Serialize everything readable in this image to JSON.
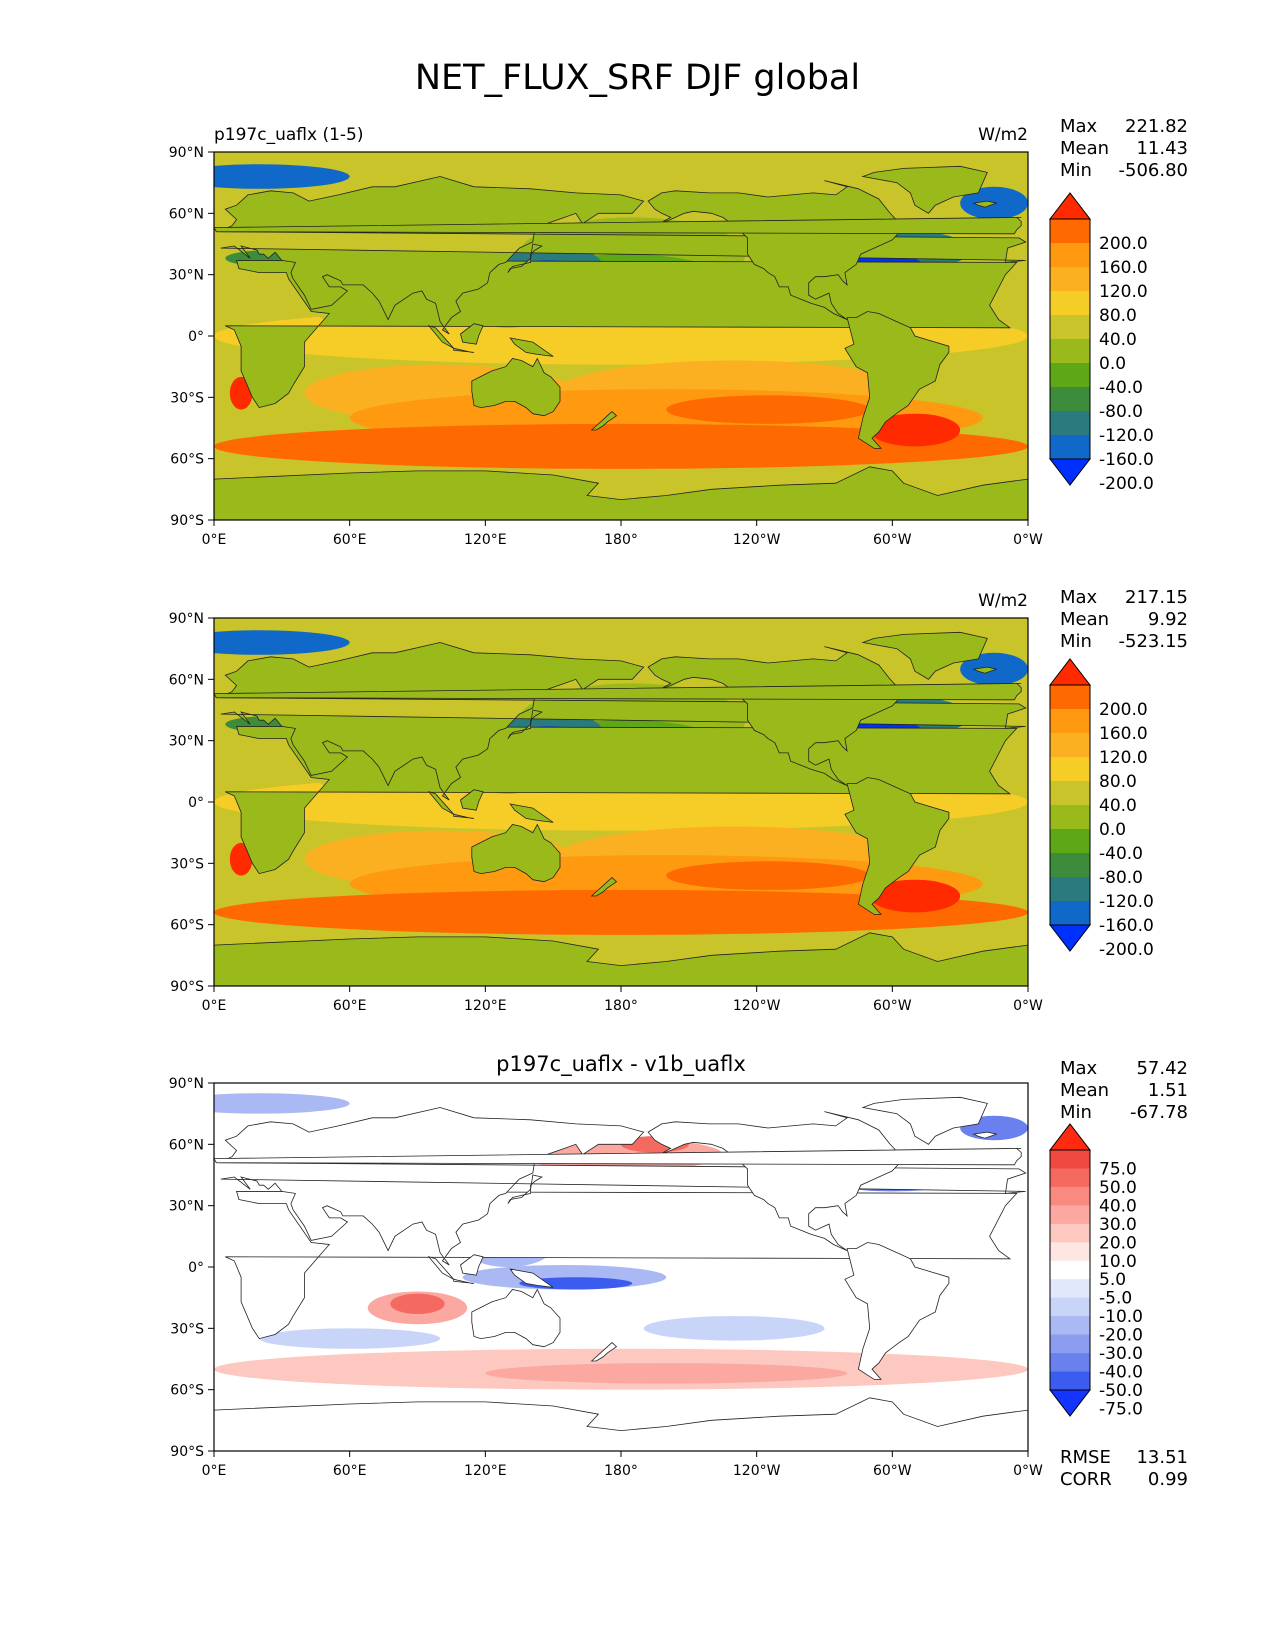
{
  "title": "NET_FLUX_SRF DJF global",
  "lon_ticks": [
    "0°E",
    "60°E",
    "120°E",
    "180°",
    "120°W",
    "60°W",
    "0°W"
  ],
  "lat_ticks": [
    "90°N",
    "60°N",
    "30°N",
    "0°",
    "30°S",
    "60°S",
    "90°S"
  ],
  "stat_labels": {
    "max": "Max",
    "mean": "Mean",
    "min": "Min",
    "rmse": "RMSE",
    "corr": "CORR"
  },
  "chart_data": [
    {
      "type": "heatmap",
      "title_left": "p197c_uaflx (1-5)",
      "title_center": "",
      "units": "W/m2",
      "stats": {
        "max": "221.82",
        "mean": "11.43",
        "min": "-506.80"
      },
      "xlim": [
        0,
        360
      ],
      "ylim": [
        -90,
        90
      ],
      "levels": [
        "200.0",
        "160.0",
        "120.0",
        "80.0",
        "40.0",
        "0.0",
        "-40.0",
        "-80.0",
        "-120.0",
        "-160.0",
        "-200.0"
      ],
      "colormap": [
        "#ff2a00",
        "#ff6a00",
        "#ff9a10",
        "#fbb022",
        "#f6cc26",
        "#c8c42a",
        "#9aba1c",
        "#5ea818",
        "#3c8c3c",
        "#2a7a7e",
        "#1068c8",
        "#0030ff"
      ],
      "extend": "both"
    },
    {
      "type": "heatmap",
      "title_left": "",
      "title_center": "",
      "units": "W/m2",
      "stats": {
        "max": "217.15",
        "mean": "9.92",
        "min": "-523.15"
      },
      "xlim": [
        0,
        360
      ],
      "ylim": [
        -90,
        90
      ],
      "levels": [
        "200.0",
        "160.0",
        "120.0",
        "80.0",
        "40.0",
        "0.0",
        "-40.0",
        "-80.0",
        "-120.0",
        "-160.0",
        "-200.0"
      ],
      "colormap": [
        "#ff2a00",
        "#ff6a00",
        "#ff9a10",
        "#fbb022",
        "#f6cc26",
        "#c8c42a",
        "#9aba1c",
        "#5ea818",
        "#3c8c3c",
        "#2a7a7e",
        "#1068c8",
        "#0030ff"
      ],
      "extend": "both"
    },
    {
      "type": "heatmap",
      "title_left": "",
      "title_center": "p197c_uaflx - v1b_uaflx",
      "units": "",
      "stats": {
        "max": "57.42",
        "mean": "1.51",
        "min": "-67.78"
      },
      "metrics": {
        "rmse": "13.51",
        "corr": "0.99"
      },
      "xlim": [
        0,
        360
      ],
      "ylim": [
        -90,
        90
      ],
      "levels": [
        "75.0",
        "50.0",
        "40.0",
        "30.0",
        "20.0",
        "10.0",
        "5.0",
        "-5.0",
        "-10.0",
        "-20.0",
        "-30.0",
        "-40.0",
        "-50.0",
        "-75.0"
      ],
      "colormap": [
        "#ff2a10",
        "#f04a40",
        "#f46a60",
        "#f88a80",
        "#faa8a0",
        "#fcc8c0",
        "#fee6e2",
        "#ffffff",
        "#e2e8fc",
        "#c8d4f8",
        "#aab8f4",
        "#8c9cf0",
        "#6a80ee",
        "#3c5cf0",
        "#1434ff"
      ],
      "extend": "both"
    }
  ]
}
